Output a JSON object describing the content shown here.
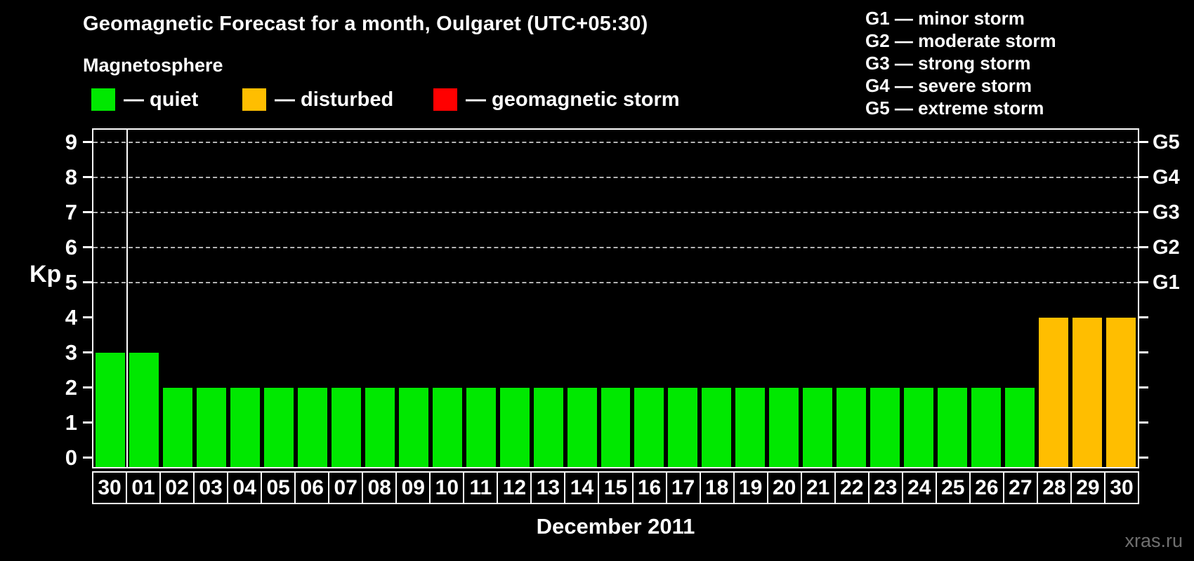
{
  "header": {
    "subtitle": "Magnetosphere"
  },
  "legend": {
    "heading": "Magnetosphere",
    "items": [
      {
        "key": "quiet",
        "label": "— quiet",
        "color": "#00e800"
      },
      {
        "key": "disturbed",
        "label": "— disturbed",
        "color": "#ffbe00"
      },
      {
        "key": "storm",
        "label": "— geomagnetic storm",
        "color": "#ff0000"
      }
    ]
  },
  "g_scale": [
    {
      "code": "G1",
      "name": "minor storm",
      "label": "G1 — minor storm"
    },
    {
      "code": "G2",
      "name": "moderate storm",
      "label": "G2 — moderate storm"
    },
    {
      "code": "G3",
      "name": "strong storm",
      "label": "G3 — strong storm"
    },
    {
      "code": "G4",
      "name": "severe storm",
      "label": "G4 — severe storm"
    },
    {
      "code": "G5",
      "name": "extreme storm",
      "label": "G5 — extreme storm"
    }
  ],
  "chart_data": {
    "type": "bar",
    "title": "Geomagnetic Forecast for a month, Oulgaret (UTC+05:30)",
    "ylabel": "Kp",
    "xlabel": "December 2011",
    "ylim": [
      0,
      9
    ],
    "yticks": [
      0,
      1,
      2,
      3,
      4,
      5,
      6,
      7,
      8,
      9
    ],
    "dashed_gridlines_at_kp": [
      5,
      6,
      7,
      8,
      9
    ],
    "right_axis": [
      {
        "kp": 9,
        "label": "G5"
      },
      {
        "kp": 8,
        "label": "G4"
      },
      {
        "kp": 7,
        "label": "G3"
      },
      {
        "kp": 6,
        "label": "G2"
      },
      {
        "kp": 5,
        "label": "G1"
      }
    ],
    "categories": [
      "30",
      "01",
      "02",
      "03",
      "04",
      "05",
      "06",
      "07",
      "08",
      "09",
      "10",
      "11",
      "12",
      "13",
      "14",
      "15",
      "16",
      "17",
      "18",
      "19",
      "20",
      "21",
      "22",
      "23",
      "24",
      "25",
      "26",
      "27",
      "28",
      "29",
      "30"
    ],
    "values": [
      3,
      3,
      2,
      2,
      2,
      2,
      2,
      2,
      2,
      2,
      2,
      2,
      2,
      2,
      2,
      2,
      2,
      2,
      2,
      2,
      2,
      2,
      2,
      2,
      2,
      2,
      2,
      2,
      4,
      4,
      4
    ],
    "statuses": [
      "quiet",
      "quiet",
      "quiet",
      "quiet",
      "quiet",
      "quiet",
      "quiet",
      "quiet",
      "quiet",
      "quiet",
      "quiet",
      "quiet",
      "quiet",
      "quiet",
      "quiet",
      "quiet",
      "quiet",
      "quiet",
      "quiet",
      "quiet",
      "quiet",
      "quiet",
      "quiet",
      "quiet",
      "quiet",
      "quiet",
      "quiet",
      "quiet",
      "disturbed",
      "disturbed",
      "disturbed"
    ],
    "colors": {
      "quiet": "#00e800",
      "disturbed": "#ffbe00",
      "storm": "#ff0000"
    },
    "month_separator_after_index": 0,
    "grid": "horizontal dashed at Kp 5–9",
    "legend_position": "top-left"
  },
  "footer": {
    "watermark": "xras.ru"
  }
}
